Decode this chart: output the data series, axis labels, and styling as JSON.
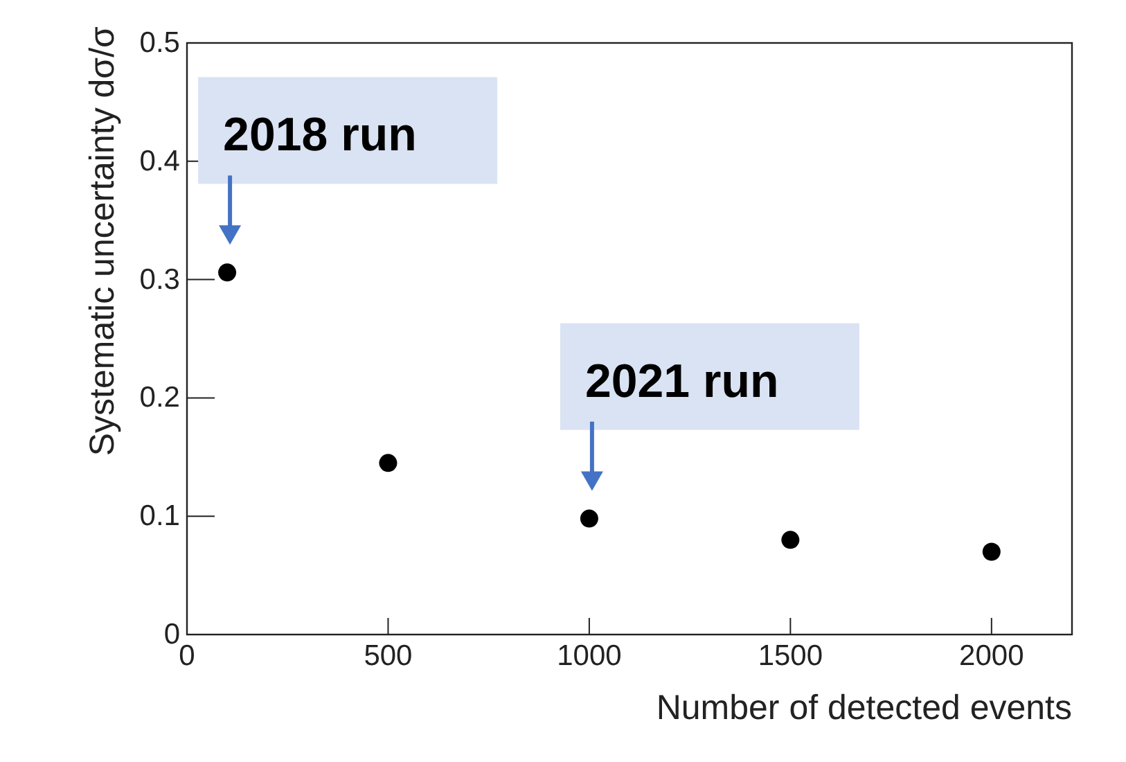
{
  "chart_data": {
    "type": "scatter",
    "xlabel": "Number of detected events",
    "ylabel": "Systematic uncertainty dσ/σ",
    "x": [
      100,
      500,
      1000,
      1500,
      2000
    ],
    "values": [
      0.306,
      0.145,
      0.098,
      0.08,
      0.07
    ],
    "color": "#000000",
    "marker": "circle",
    "grid": false,
    "xlim": [
      0,
      2200
    ],
    "ylim": [
      0,
      0.5
    ],
    "xticks": [
      0,
      500,
      1000,
      1500,
      2000
    ],
    "yticks": [
      0,
      0.1,
      0.2,
      0.3,
      0.4,
      0.5
    ],
    "annotations": [
      {
        "text": "2018 run",
        "x": 100,
        "y": 0.306
      },
      {
        "text": "2021 run",
        "x": 1000,
        "y": 0.098
      }
    ]
  }
}
